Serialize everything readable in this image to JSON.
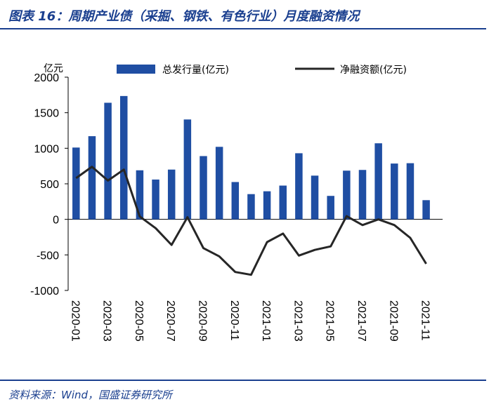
{
  "header": {
    "title": "图表 16：周期产业债（采掘、钢铁、有色行业）月度融资情况"
  },
  "footer": {
    "source": "资料来源：Wind，国盛证券研究所"
  },
  "colors": {
    "title": "#1a3f8f",
    "bar": "#1f4ea3",
    "line": "#262626",
    "axis": "#000000"
  },
  "chart_data": {
    "type": "bar",
    "title": "",
    "xlabel": "",
    "ylabel": "亿元",
    "ylim": [
      -1000,
      2000
    ],
    "yticks": [
      2000,
      1500,
      1000,
      500,
      0,
      -500,
      -1000
    ],
    "legend_position": "top",
    "x": [
      "2020-01",
      "2020-02",
      "2020-03",
      "2020-04",
      "2020-05",
      "2020-06",
      "2020-07",
      "2020-08",
      "2020-09",
      "2020-10",
      "2020-11",
      "2020-12",
      "2021-01",
      "2021-02",
      "2021-03",
      "2021-04",
      "2021-05",
      "2021-06",
      "2021-07",
      "2021-08",
      "2021-09",
      "2021-10",
      "2021-11"
    ],
    "xtick_labels": [
      "2020-01",
      "2020-03",
      "2020-05",
      "2020-07",
      "2020-09",
      "2020-11",
      "2021-01",
      "2021-03",
      "2021-05",
      "2021-07",
      "2021-09",
      "2021-11"
    ],
    "series": [
      {
        "name": "总发行量(亿元)",
        "kind": "bar",
        "values": [
          1010,
          1170,
          1640,
          1735,
          690,
          560,
          700,
          1405,
          890,
          1020,
          525,
          355,
          395,
          475,
          930,
          615,
          330,
          685,
          695,
          1070,
          785,
          790,
          270
        ]
      },
      {
        "name": "净融资额(亿元)",
        "kind": "line",
        "values": [
          580,
          740,
          545,
          700,
          40,
          -125,
          -360,
          30,
          -405,
          -520,
          -740,
          -780,
          -320,
          -200,
          -510,
          -430,
          -380,
          45,
          -80,
          0,
          -80,
          -260,
          -625
        ]
      }
    ]
  }
}
